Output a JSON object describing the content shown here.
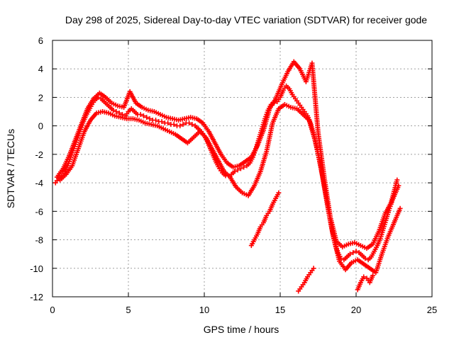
{
  "chart_data": {
    "type": "scatter",
    "title": "Day 298 of 2025, Sidereal Day-to-day VTEC variation (SDTVAR) for receiver gode",
    "xlabel": "GPS time / hours",
    "ylabel": "SDTVAR / TECUs",
    "xlim": [
      0,
      25
    ],
    "ylim": [
      -12,
      6
    ],
    "xticks": [
      0,
      5,
      10,
      15,
      20,
      25
    ],
    "yticks": [
      -12,
      -10,
      -8,
      -6,
      -4,
      -2,
      0,
      2,
      4,
      6
    ],
    "grid": true,
    "marker": "plus",
    "color": "#ff0000",
    "series": [
      {
        "name": "main",
        "x": [
          0.2,
          0.4,
          0.6,
          0.8,
          1.0,
          1.2,
          1.4,
          1.6,
          1.8,
          2.0,
          2.2,
          2.4,
          2.6,
          2.8,
          3.0,
          3.2,
          3.4,
          3.6,
          3.8,
          4.0,
          4.2,
          4.4,
          4.6,
          4.8,
          5.0,
          5.2,
          5.4,
          5.6,
          5.8,
          6.0,
          6.2,
          6.4,
          6.6,
          6.8,
          7.0,
          7.2,
          7.4,
          7.6,
          7.8,
          8.0,
          8.2,
          8.4,
          8.6,
          8.8,
          9.0,
          9.2,
          9.4,
          9.6,
          9.8,
          10.0,
          10.2,
          10.4,
          10.6,
          10.8,
          11.0,
          11.2,
          11.4,
          11.6,
          11.8,
          12.0,
          12.2,
          12.4,
          12.6,
          12.8,
          13.0,
          13.2,
          13.4,
          13.6,
          13.8,
          14.0,
          14.2,
          14.4,
          14.6,
          14.8,
          15.0,
          15.2,
          15.4,
          15.6,
          15.8,
          16.0,
          16.2,
          16.4,
          16.6,
          16.8,
          17.0,
          17.2,
          17.4,
          17.6,
          17.8,
          18.0,
          18.2,
          18.4,
          18.6,
          18.8,
          19.0,
          19.2,
          19.4,
          19.6,
          19.8,
          20.0,
          20.2,
          20.4,
          20.6,
          20.8,
          21.0,
          21.2,
          21.4,
          21.6,
          21.8,
          22.0,
          22.2,
          22.4,
          22.6,
          22.8
        ],
        "y": [
          -4.0,
          -3.7,
          -3.5,
          -3.2,
          -2.8,
          -2.2,
          -1.6,
          -1.0,
          -0.4,
          0.2,
          0.7,
          1.1,
          1.5,
          1.8,
          2.0,
          1.9,
          1.7,
          1.5,
          1.3,
          1.1,
          1.0,
          0.9,
          0.8,
          0.7,
          1.0,
          1.2,
          1.0,
          0.8,
          0.8,
          0.7,
          0.6,
          0.5,
          0.4,
          0.4,
          0.3,
          0.3,
          0.2,
          0.2,
          0.1,
          0.1,
          0.0,
          0.0,
          0.1,
          0.2,
          0.2,
          0.1,
          0.0,
          -0.2,
          -0.4,
          -0.7,
          -1.1,
          -1.6,
          -2.1,
          -2.6,
          -3.0,
          -3.3,
          -3.5,
          -3.5,
          -3.4,
          -3.2,
          -3.1,
          -3.0,
          -2.9,
          -2.8,
          -2.6,
          -2.2,
          -1.6,
          -0.9,
          -0.2,
          0.5,
          1.1,
          1.5,
          1.6,
          1.7,
          2.0,
          2.5,
          2.8,
          2.6,
          2.2,
          1.9,
          1.6,
          1.3,
          1.0,
          0.7,
          0.2,
          -0.6,
          -1.5,
          -2.5,
          -3.6,
          -4.8,
          -6.0,
          -7.2,
          -8.2,
          -8.9,
          -9.3,
          -9.4,
          -9.2,
          -9.0,
          -8.9,
          -8.8,
          -8.9,
          -9.1,
          -9.3,
          -9.4,
          -9.2,
          -8.8,
          -8.4,
          -7.9,
          -7.2,
          -6.5,
          -5.8,
          -5.2,
          -4.7,
          -4.2
        ]
      },
      {
        "name": "upper-branch",
        "x": [
          0.3,
          0.7,
          1.1,
          1.5,
          1.9,
          2.3,
          2.7,
          3.1,
          3.5,
          3.9,
          4.3,
          4.7,
          5.1,
          5.5,
          5.9,
          6.3,
          6.7,
          7.1,
          7.5,
          7.9,
          8.3,
          8.7,
          9.1,
          9.5,
          9.9,
          10.3,
          10.7,
          11.1,
          11.5,
          11.9,
          12.3,
          12.7,
          13.1,
          13.5,
          13.9,
          14.3,
          14.7,
          15.1,
          15.5,
          15.9,
          16.3,
          16.7,
          17.1,
          17.5,
          17.9,
          18.3,
          18.7,
          19.1,
          19.5,
          19.9,
          20.3,
          20.7,
          21.1,
          21.5,
          21.9,
          22.3,
          22.7
        ],
        "y": [
          -3.6,
          -3.0,
          -2.1,
          -1.0,
          0.1,
          1.2,
          1.9,
          2.3,
          2.0,
          1.6,
          1.4,
          1.3,
          2.4,
          1.6,
          1.3,
          1.1,
          1.0,
          0.8,
          0.6,
          0.5,
          0.4,
          0.5,
          0.6,
          0.5,
          0.2,
          -0.4,
          -1.2,
          -2.0,
          -2.6,
          -2.9,
          -2.8,
          -2.5,
          -2.2,
          -1.4,
          -0.3,
          1.2,
          1.9,
          2.9,
          3.8,
          4.5,
          4.0,
          3.1,
          4.4,
          -0.5,
          -3.6,
          -6.4,
          -8.1,
          -8.5,
          -8.3,
          -8.2,
          -8.4,
          -8.6,
          -8.3,
          -7.4,
          -6.2,
          -5.4,
          -3.8
        ]
      },
      {
        "name": "lower-branch",
        "x": [
          0.5,
          0.9,
          1.3,
          1.7,
          2.1,
          2.5,
          2.9,
          3.3,
          3.7,
          4.1,
          4.5,
          4.9,
          5.3,
          5.7,
          6.1,
          6.5,
          6.9,
          7.3,
          7.7,
          8.1,
          8.5,
          8.9,
          9.3,
          9.7,
          10.1,
          10.5,
          10.9,
          11.3,
          11.7,
          12.1,
          12.5,
          12.9,
          13.3,
          13.7,
          14.1,
          14.5,
          14.9,
          15.3,
          15.7,
          16.1,
          16.5,
          16.9,
          17.3,
          17.7,
          18.1,
          18.5,
          18.9,
          19.3,
          19.7,
          20.1,
          20.5,
          20.9,
          21.3,
          21.7,
          22.1,
          22.5,
          22.9
        ],
        "y": [
          -3.8,
          -3.4,
          -2.8,
          -1.6,
          -0.4,
          0.4,
          0.9,
          1.0,
          0.9,
          0.7,
          0.6,
          0.5,
          0.5,
          0.4,
          0.2,
          0.1,
          0.0,
          -0.2,
          -0.4,
          -0.6,
          -0.9,
          -1.2,
          -0.8,
          -0.4,
          -0.8,
          -1.6,
          -2.4,
          -3.2,
          -3.6,
          -4.3,
          -4.7,
          -4.9,
          -4.2,
          -3.2,
          -1.8,
          0.2,
          1.2,
          1.5,
          1.3,
          1.2,
          0.8,
          0.4,
          -1.0,
          -3.0,
          -5.5,
          -7.8,
          -9.5,
          -10.1,
          -9.6,
          -9.4,
          -9.7,
          -10.0,
          -10.3,
          -9.0,
          -7.8,
          -6.8,
          -5.8
        ]
      },
      {
        "name": "isolated-1",
        "x": [
          13.1,
          13.3,
          13.5,
          13.7,
          13.9,
          14.1,
          14.3,
          14.5,
          14.7,
          14.9
        ],
        "y": [
          -8.4,
          -8.0,
          -7.6,
          -7.1,
          -6.8,
          -6.3,
          -6.0,
          -5.5,
          -5.1,
          -4.7
        ]
      },
      {
        "name": "isolated-2",
        "x": [
          16.2,
          16.4,
          16.6,
          16.8,
          17.0,
          17.2
        ],
        "y": [
          -11.6,
          -11.3,
          -11.0,
          -10.6,
          -10.3,
          -10.0
        ]
      },
      {
        "name": "isolated-3",
        "x": [
          20.1,
          20.3,
          20.5,
          20.7,
          20.9,
          21.1
        ],
        "y": [
          -11.5,
          -11.0,
          -10.6,
          -10.7,
          -11.0,
          -10.5
        ]
      }
    ]
  }
}
